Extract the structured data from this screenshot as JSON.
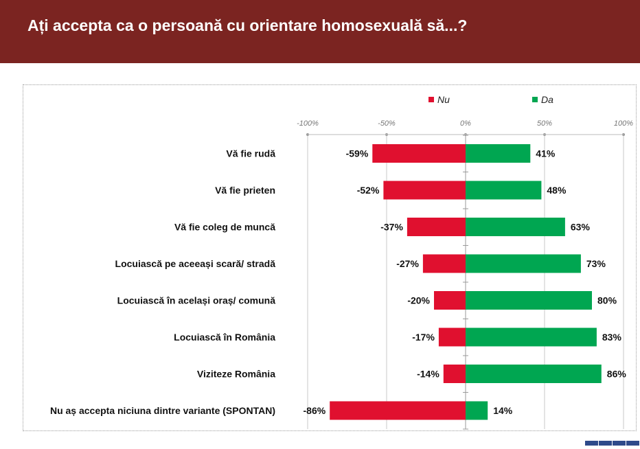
{
  "title": "Ați accepta ca o persoană cu orientare homosexuală să...?",
  "colors": {
    "header": "#7b2421",
    "nu": "#e0102f",
    "da": "#00a651",
    "grid": "#c8c8c8"
  },
  "chart_data": {
    "type": "bar",
    "orientation": "horizontal",
    "stacked": "diverging",
    "title": "Ați accepta ca o persoană cu orientare homosexuală să...?",
    "categories": [
      "Vă fie rudă",
      "Vă fie prieten",
      "Vă fie coleg de muncă",
      "Locuiască pe aceeași scară/ stradă",
      "Locuiască în același oraș/ comună",
      "Locuiască în România",
      "Viziteze România",
      "Nu aș accepta niciuna dintre variante (SPONTAN)"
    ],
    "series": [
      {
        "name": "Nu",
        "color": "#e0102f",
        "values": [
          -59,
          -52,
          -37,
          -27,
          -20,
          -17,
          -14,
          -86
        ],
        "labels": [
          "-59%",
          "-52%",
          "-37%",
          "-27%",
          "-20%",
          "-17%",
          "-14%",
          "-86%"
        ]
      },
      {
        "name": "Da",
        "color": "#00a651",
        "values": [
          41,
          48,
          63,
          73,
          80,
          83,
          86,
          14
        ],
        "labels": [
          "41%",
          "48%",
          "63%",
          "73%",
          "80%",
          "83%",
          "86%",
          "14%"
        ]
      }
    ],
    "xlim": [
      -100,
      100
    ],
    "ticks": [
      -100,
      -50,
      0,
      50,
      100
    ],
    "tick_labels": [
      "-100%",
      "-50%",
      "0%",
      "50%",
      "100%"
    ],
    "grid": true,
    "legend_position": "top"
  }
}
